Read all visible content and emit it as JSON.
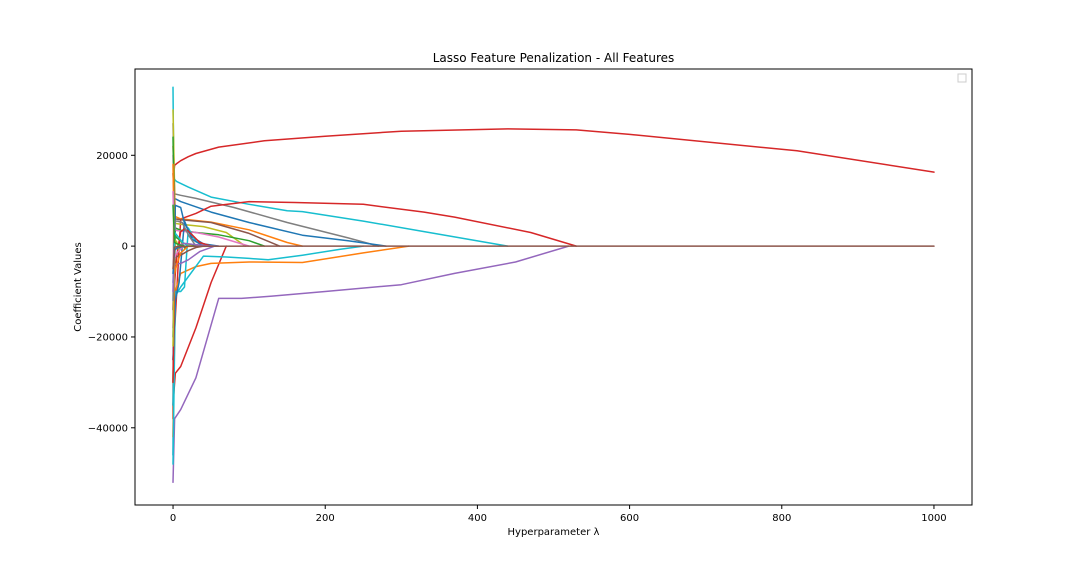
{
  "chart_data": {
    "type": "line",
    "title": "Lasso Feature Penalization - All Features",
    "xlabel": "Hyperparameter λ",
    "ylabel": "Coefficient Values",
    "xlim": [
      -50,
      1050
    ],
    "ylim": [
      -57000,
      39000
    ],
    "xticks": [
      0,
      200,
      400,
      600,
      800,
      1000
    ],
    "yticks": [
      -40000,
      -20000,
      0,
      20000
    ],
    "grid": false,
    "legend": "top-right",
    "series": [
      {
        "color": "#d62728",
        "x": [
          0,
          1,
          2,
          5,
          10,
          20,
          30,
          60,
          120,
          200,
          300,
          440,
          530,
          600,
          820,
          1000
        ],
        "y": [
          -38000,
          16000,
          17800,
          18200,
          18800,
          19700,
          20400,
          21800,
          23200,
          24200,
          25300,
          25800,
          25600,
          24600,
          21000,
          16300
        ]
      },
      {
        "color": "#17becf",
        "x": [
          0,
          1,
          3,
          5,
          10,
          20,
          50,
          100,
          150,
          170,
          250,
          330,
          440
        ],
        "y": [
          35000,
          15000,
          14500,
          14200,
          13800,
          13000,
          10800,
          9200,
          7800,
          7600,
          5500,
          3200,
          0
        ]
      },
      {
        "color": "#7f7f7f",
        "x": [
          0,
          2,
          10,
          30,
          80,
          150,
          230,
          270
        ],
        "y": [
          27000,
          11500,
          11200,
          10500,
          8500,
          5200,
          1800,
          0
        ]
      },
      {
        "color": "#1f77b4",
        "x": [
          0,
          2,
          10,
          50,
          100,
          170,
          230,
          280
        ],
        "y": [
          -46000,
          10500,
          9800,
          7500,
          5200,
          2400,
          1200,
          0
        ]
      },
      {
        "color": "#d62728",
        "x": [
          0,
          10,
          30,
          50,
          100,
          160,
          250,
          330,
          370,
          470,
          530
        ],
        "y": [
          -25000,
          6000,
          7200,
          8800,
          9800,
          9600,
          9200,
          7500,
          6400,
          3000,
          0
        ]
      },
      {
        "color": "#9467bd",
        "x": [
          0,
          2,
          10,
          30,
          60,
          90,
          130,
          200,
          300,
          370,
          450,
          520
        ],
        "y": [
          -52000,
          -38000,
          -36000,
          -29000,
          -11500,
          -11500,
          -11000,
          -10000,
          -8500,
          -6000,
          -3500,
          0
        ]
      },
      {
        "color": "#d62728",
        "x": [
          0,
          3,
          10,
          30,
          50,
          70
        ],
        "y": [
          -35000,
          -28000,
          -26500,
          -18000,
          -8000,
          0
        ]
      },
      {
        "color": "#ff7f0e",
        "x": [
          0,
          3,
          10,
          30,
          50,
          100,
          170,
          250,
          310
        ],
        "y": [
          -42000,
          -10000,
          -6000,
          -4500,
          -3800,
          -3500,
          -3600,
          -1500,
          0
        ]
      },
      {
        "color": "#17becf",
        "x": [
          0,
          3,
          10,
          40,
          70,
          100,
          125,
          170,
          220,
          250
        ],
        "y": [
          -48000,
          -11000,
          -9000,
          -2200,
          -2400,
          -2700,
          -3000,
          -2000,
          -700,
          0
        ]
      },
      {
        "color": "#bcbd22",
        "x": [
          0,
          3,
          10,
          40,
          70,
          95
        ],
        "y": [
          30000,
          5000,
          4800,
          4300,
          3000,
          0
        ]
      },
      {
        "color": "#ff7f0e",
        "x": [
          0,
          3,
          10,
          50,
          100,
          150,
          170
        ],
        "y": [
          22000,
          6500,
          6000,
          5300,
          3600,
          800,
          0
        ]
      },
      {
        "color": "#8c564b",
        "x": [
          0,
          3,
          10,
          50,
          100,
          140
        ],
        "y": [
          16000,
          6000,
          5800,
          5200,
          2800,
          0
        ]
      },
      {
        "color": "#2ca02c",
        "x": [
          0,
          3,
          10,
          30,
          60,
          100,
          120
        ],
        "y": [
          -30000,
          4000,
          3500,
          3000,
          2500,
          1200,
          0
        ]
      },
      {
        "color": "#e377c2",
        "x": [
          0,
          3,
          10,
          30,
          60,
          100
        ],
        "y": [
          20000,
          3500,
          3300,
          3000,
          2000,
          0
        ]
      },
      {
        "color": "#1f77b4",
        "x": [
          0,
          3,
          10,
          15,
          25,
          40,
          60
        ],
        "y": [
          -20000,
          9000,
          8500,
          5000,
          2000,
          500,
          0
        ]
      },
      {
        "color": "#17becf",
        "x": [
          0,
          3,
          10,
          15,
          20,
          30,
          50
        ],
        "y": [
          -35000,
          -10000,
          -10000,
          -9000,
          4000,
          1000,
          0
        ]
      },
      {
        "color": "#1f77b4",
        "x": [
          0,
          3,
          8,
          15,
          25,
          40
        ],
        "y": [
          -25000,
          -12000,
          -8000,
          5500,
          1500,
          0
        ]
      },
      {
        "color": "#d62728",
        "x": [
          0,
          2,
          5,
          10,
          15,
          20,
          25,
          35,
          50
        ],
        "y": [
          -30000,
          -8000,
          -2000,
          3200,
          3800,
          3300,
          2500,
          800,
          0
        ]
      },
      {
        "color": "#9467bd",
        "x": [
          0,
          2,
          10,
          20,
          35,
          55
        ],
        "y": [
          -18000,
          -4000,
          -3800,
          -3000,
          -1200,
          0
        ]
      },
      {
        "color": "#8c564b",
        "x": [
          0,
          2,
          10,
          20,
          30,
          40
        ],
        "y": [
          -14000,
          -2500,
          -2000,
          -1000,
          -300,
          0
        ]
      },
      {
        "color": "#2ca02c",
        "x": [
          0,
          2,
          5,
          10,
          15,
          20,
          30
        ],
        "y": [
          24000,
          2500,
          1800,
          1200,
          -400,
          300,
          0
        ]
      },
      {
        "color": "#bcbd22",
        "x": [
          0,
          2,
          5,
          8,
          12,
          18,
          25
        ],
        "y": [
          -22000,
          1500,
          900,
          -1200,
          800,
          300,
          0
        ]
      },
      {
        "color": "#ff7f0e",
        "x": [
          0,
          2,
          5,
          10,
          20
        ],
        "y": [
          18000,
          -6000,
          -4000,
          -1500,
          0
        ]
      },
      {
        "color": "#7f7f7f",
        "x": [
          0,
          2,
          6,
          12,
          20,
          30
        ],
        "y": [
          -12000,
          5500,
          5500,
          5200,
          2500,
          0
        ]
      },
      {
        "color": "#e377c2",
        "x": [
          0,
          2,
          5,
          10,
          15
        ],
        "y": [
          12000,
          -2500,
          -1500,
          -600,
          0
        ]
      },
      {
        "color": "#17becf",
        "x": [
          0,
          2,
          6,
          12,
          20
        ],
        "y": [
          -8000,
          3000,
          2200,
          900,
          0
        ]
      },
      {
        "color": "#9467bd",
        "x": [
          0,
          1,
          3,
          8,
          15,
          25,
          45,
          60
        ],
        "y": [
          -10000,
          -1000,
          -800,
          300,
          600,
          400,
          100,
          0
        ]
      },
      {
        "color": "#2ca02c",
        "x": [
          0,
          2,
          8,
          15
        ],
        "y": [
          9000,
          800,
          300,
          0
        ]
      },
      {
        "color": "#1f77b4",
        "x": [
          0,
          2,
          6,
          15
        ],
        "y": [
          -6000,
          -800,
          -400,
          0
        ]
      },
      {
        "color": "#8c564b",
        "x": [
          0,
          2,
          10,
          100,
          200,
          400,
          600,
          800,
          1000
        ],
        "y": [
          -5000,
          -200,
          -50,
          0,
          0,
          0,
          0,
          0,
          0
        ]
      }
    ]
  }
}
